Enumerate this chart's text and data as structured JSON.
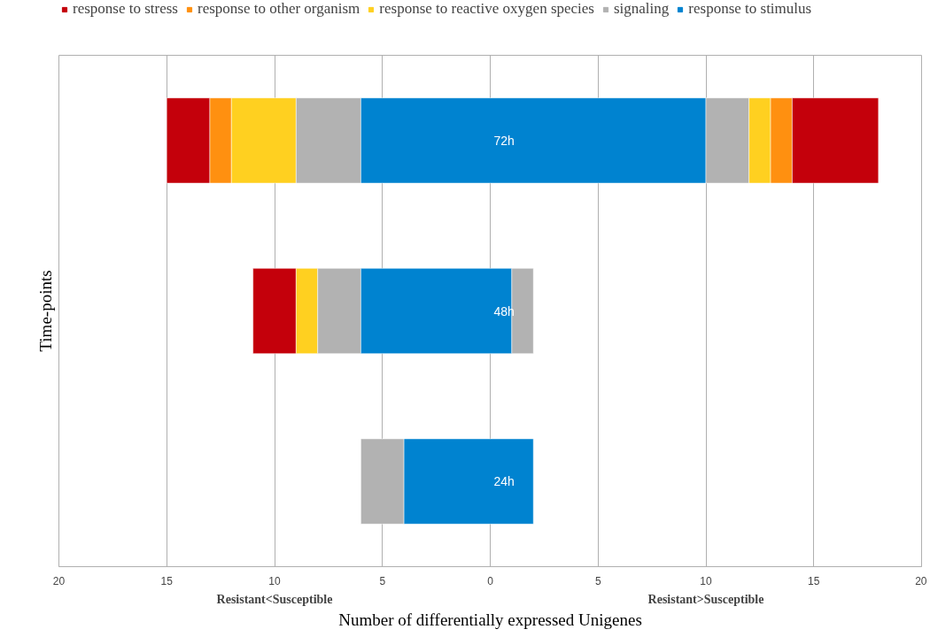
{
  "chart_data": {
    "type": "bar",
    "orientation": "horizontal",
    "categories": [
      "72h",
      "48h",
      "24h"
    ],
    "series": [
      {
        "name": "response to stress",
        "color": "#c4000b",
        "base": [
          -15,
          -11,
          null
        ],
        "values": [
          2,
          2,
          null
        ]
      },
      {
        "name": "response to other organism",
        "color": "#ff9010",
        "base": [
          -13,
          null,
          null
        ],
        "values": [
          1,
          null,
          null
        ]
      },
      {
        "name": "response to reactive oxygen species",
        "color": "#ffd020",
        "base": [
          -12,
          -9,
          null
        ],
        "values": [
          3,
          1,
          null
        ]
      },
      {
        "name": "signaling",
        "color": "#b2b2b2",
        "base": [
          -9,
          -8,
          -6
        ],
        "values": [
          3,
          2,
          2
        ]
      },
      {
        "name": "response to stimulus",
        "color": "#0083d0",
        "base": [
          -6,
          -6,
          -4
        ],
        "values": [
          16,
          7,
          6
        ]
      },
      {
        "color": "#b2b2b2",
        "base": [
          10,
          1,
          null
        ],
        "values": [
          2,
          1,
          null
        ]
      },
      {
        "color": "#ffd020",
        "base": [
          12,
          null,
          null
        ],
        "values": [
          1,
          null,
          null
        ]
      },
      {
        "color": "#ff9010",
        "base": [
          13,
          null,
          null
        ],
        "values": [
          1,
          null,
          null
        ]
      },
      {
        "color": "#c4000b",
        "base": [
          14,
          null,
          null
        ],
        "values": [
          4,
          null,
          null
        ]
      }
    ],
    "xlim": [
      -20,
      20
    ],
    "xticks": [
      {
        "value": -20,
        "label": "20"
      },
      {
        "value": -15,
        "label": "15"
      },
      {
        "value": -10,
        "label": "10"
      },
      {
        "value": -5,
        "label": "5"
      },
      0,
      5,
      10,
      15,
      20
    ],
    "xlabel": "Number of differentially expressed Unigenes",
    "ylabel": "Time-points",
    "annotations": [
      "Resistant<Susceptible",
      "Resistant>Susceptible"
    ],
    "grid": "x",
    "legend": "top"
  }
}
